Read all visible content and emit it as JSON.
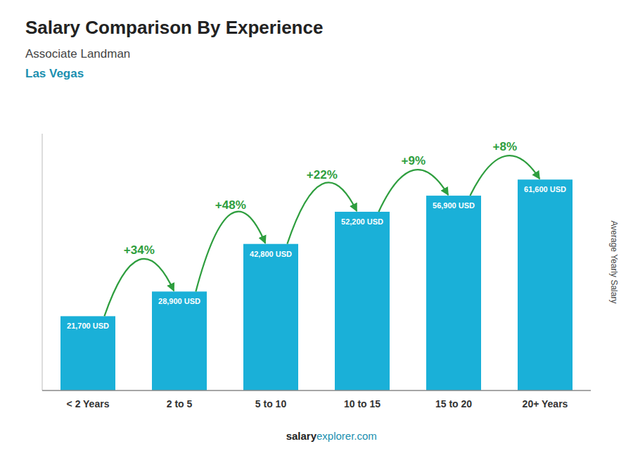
{
  "chart_data": {
    "type": "bar",
    "title": "Salary Comparison By Experience",
    "subtitle": [
      "Associate Landman",
      "Las Vegas"
    ],
    "categories": [
      "< 2 Years",
      "2 to 5",
      "5 to 10",
      "10 to 15",
      "15 to 20",
      "20+ Years"
    ],
    "values": [
      21700,
      28900,
      42800,
      52200,
      56900,
      61600
    ],
    "value_labels": [
      "21,700 USD",
      "28,900 USD",
      "42,800 USD",
      "52,200 USD",
      "56,900 USD",
      "61,600 USD"
    ],
    "data_labels": true,
    "annotations": [
      "+34%",
      "+48%",
      "+22%",
      "+9%",
      "+8%"
    ],
    "ylabel": "Average Yearly Salary",
    "footer": [
      "salary",
      "explorer.com"
    ],
    "color": "#1ab0d8",
    "ylim": [
      0,
      75000
    ],
    "tick_labels": "x",
    "grid": false
  }
}
